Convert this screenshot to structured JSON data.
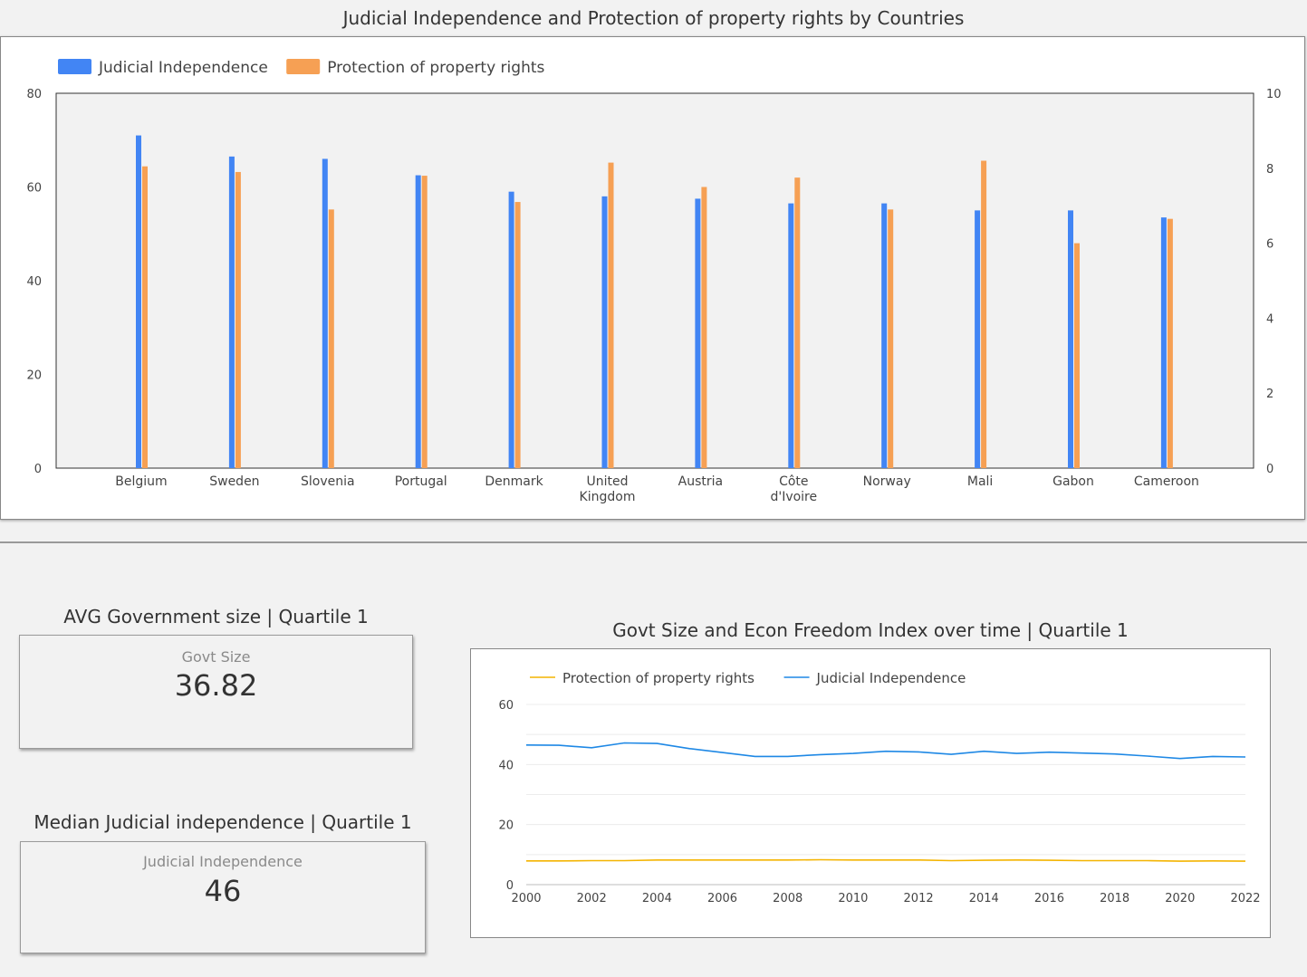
{
  "bar_chart": {
    "title": "Judicial Independence and Protection of property rights by Countries"
  },
  "kpi_1": {
    "title": "AVG Government size | Quartile 1",
    "label": "Govt Size",
    "value": "36.82"
  },
  "kpi_2": {
    "title": "Median Judicial independence | Quartile 1",
    "label": "Judicial Independence",
    "value": "46"
  },
  "line_chart": {
    "title": "Govt Size and Econ Freedom Index over time | Quartile 1"
  },
  "colors": {
    "blue": "#4285f4",
    "orange": "#f6a054",
    "line_blue": "#1e88e5",
    "line_orange": "#f4b400"
  },
  "chart_data": [
    {
      "type": "bar",
      "title": "Judicial Independence and Protection of property rights by Countries",
      "categories": [
        "Belgium",
        "Sweden",
        "Slovenia",
        "Portugal",
        "Denmark",
        "United Kingdom",
        "Austria",
        "Côte d'Ivoire",
        "Norway",
        "Mali",
        "Gabon",
        "Cameroon"
      ],
      "series": [
        {
          "name": "Judicial Independence",
          "axis": "left",
          "color": "#4285f4",
          "values": [
            71,
            66.5,
            66,
            62.5,
            59,
            58,
            57.5,
            56.5,
            56.5,
            55,
            55,
            53.5
          ]
        },
        {
          "name": "Protection of property rights",
          "axis": "right",
          "color": "#f6a054",
          "values": [
            8.05,
            7.9,
            6.9,
            7.8,
            7.1,
            8.15,
            7.5,
            7.75,
            6.9,
            8.2,
            6.0,
            6.65
          ]
        }
      ],
      "yleft": {
        "ticks": [
          "0",
          "20",
          "40",
          "60",
          "80"
        ],
        "range": [
          0,
          80
        ]
      },
      "yright": {
        "ticks": [
          "0",
          "2",
          "4",
          "6",
          "8",
          "10"
        ],
        "range": [
          0,
          10
        ]
      },
      "legend": "top-left",
      "grid": false
    },
    {
      "type": "line",
      "title": "Govt Size and Econ Freedom Index over time | Quartile 1",
      "x": [
        2000,
        2001,
        2002,
        2003,
        2004,
        2005,
        2006,
        2007,
        2008,
        2009,
        2010,
        2011,
        2012,
        2013,
        2014,
        2015,
        2016,
        2017,
        2018,
        2019,
        2020,
        2021,
        2022
      ],
      "x_ticks": [
        "2000",
        "2002",
        "2004",
        "2006",
        "2008",
        "2010",
        "2012",
        "2014",
        "2016",
        "2018",
        "2020",
        "2022"
      ],
      "series": [
        {
          "name": "Protection of property rights",
          "color": "#f4b400",
          "values": [
            7.9,
            7.9,
            8.0,
            8.0,
            8.2,
            8.2,
            8.2,
            8.2,
            8.2,
            8.3,
            8.2,
            8.2,
            8.2,
            8.0,
            8.1,
            8.2,
            8.1,
            8.0,
            8.0,
            8.0,
            7.8,
            7.9,
            7.8
          ]
        },
        {
          "name": "Judicial Independence",
          "color": "#1e88e5",
          "values": [
            46.5,
            46.4,
            45.6,
            47.2,
            47.0,
            45.3,
            44.0,
            42.7,
            42.7,
            43.3,
            43.7,
            44.4,
            44.2,
            43.4,
            44.4,
            43.7,
            44.1,
            43.8,
            43.5,
            42.8,
            42.0,
            42.7,
            42.5
          ]
        }
      ],
      "y_ticks": [
        "0",
        "20",
        "40",
        "60"
      ],
      "ylim": [
        0,
        60
      ],
      "legend": "top-left",
      "grid": true
    }
  ]
}
